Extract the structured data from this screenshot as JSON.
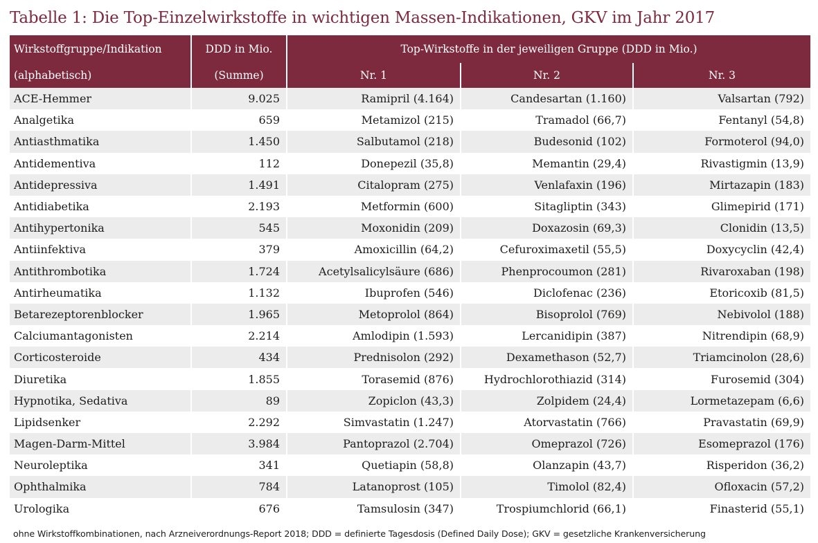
{
  "title": "Tabelle 1: Die Top-Einzelwirkstoffe in wichtigen Massen-Indikationen, GKV im Jahr 2017",
  "header": {
    "col1_line1": "Wirkstoffgruppe/Indikation",
    "col1_line2": "(alphabetisch)",
    "col2_line1": "DDD in Mio.",
    "col2_line2": "(Summe)",
    "group_label": "Top-Wirkstoffe in der jeweiligen Gruppe (DDD in Mio.)",
    "nr1": "Nr. 1",
    "nr2": "Nr. 2",
    "nr3": "Nr. 3"
  },
  "rows": [
    {
      "group": "ACE-Hemmer",
      "ddd": "9.025",
      "nr1": "Ramipril (4.164)",
      "nr2": "Candesartan (1.160)",
      "nr3": "Valsartan (792)"
    },
    {
      "group": "Analgetika",
      "ddd": "659",
      "nr1": "Metamizol (215)",
      "nr2": "Tramadol (66,7)",
      "nr3": "Fentanyl (54,8)"
    },
    {
      "group": "Antiasthmatika",
      "ddd": "1.450",
      "nr1": "Salbutamol (218)",
      "nr2": "Budesonid (102)",
      "nr3": "Formoterol (94,0)"
    },
    {
      "group": "Antidementiva",
      "ddd": "112",
      "nr1": "Donepezil (35,8)",
      "nr2": "Memantin (29,4)",
      "nr3": "Rivastigmin (13,9)"
    },
    {
      "group": "Antidepressiva",
      "ddd": "1.491",
      "nr1": "Citalopram (275)",
      "nr2": "Venlafaxin (196)",
      "nr3": "Mirtazapin (183)"
    },
    {
      "group": "Antidiabetika",
      "ddd": "2.193",
      "nr1": "Metformin (600)",
      "nr2": "Sitagliptin (343)",
      "nr3": "Glimepirid (171)"
    },
    {
      "group": "Antihypertonika",
      "ddd": "545",
      "nr1": "Moxonidin (209)",
      "nr2": "Doxazosin (69,3)",
      "nr3": "Clonidin (13,5)"
    },
    {
      "group": "Antiinfektiva",
      "ddd": "379",
      "nr1": "Amoxicillin (64,2)",
      "nr2": "Cefuroximaxetil (55,5)",
      "nr3": "Doxycyclin (42,4)"
    },
    {
      "group": "Antithrombotika",
      "ddd": "1.724",
      "nr1": "Acetylsalicylsäure (686)",
      "nr2": "Phenprocoumon (281)",
      "nr3": "Rivaroxaban (198)"
    },
    {
      "group": "Antirheumatika",
      "ddd": "1.132",
      "nr1": "Ibuprofen (546)",
      "nr2": "Diclofenac (236)",
      "nr3": "Etoricoxib (81,5)"
    },
    {
      "group": "Betarezeptorenblocker",
      "ddd": "1.965",
      "nr1": "Metoprolol (864)",
      "nr2": "Bisoprolol (769)",
      "nr3": "Nebivolol (188)"
    },
    {
      "group": "Calciumantagonisten",
      "ddd": "2.214",
      "nr1": "Amlodipin (1.593)",
      "nr2": "Lercanidipin (387)",
      "nr3": "Nitrendipin (68,9)"
    },
    {
      "group": "Corticosteroide",
      "ddd": "434",
      "nr1": "Prednisolon (292)",
      "nr2": "Dexamethason (52,7)",
      "nr3": "Triamcinolon (28,6)"
    },
    {
      "group": "Diuretika",
      "ddd": "1.855",
      "nr1": "Torasemid (876)",
      "nr2": "Hydrochlorothiazid (314)",
      "nr3": "Furosemid (304)"
    },
    {
      "group": "Hypnotika, Sedativa",
      "ddd": "89",
      "nr1": "Zopiclon (43,3)",
      "nr2": "Zolpidem (24,4)",
      "nr3": "Lormetazepam (6,6)"
    },
    {
      "group": "Lipidsenker",
      "ddd": "2.292",
      "nr1": "Simvastatin (1.247)",
      "nr2": "Atorvastatin (766)",
      "nr3": "Pravastatin (69,9)"
    },
    {
      "group": "Magen-Darm-Mittel",
      "ddd": "3.984",
      "nr1": "Pantoprazol (2.704)",
      "nr2": "Omeprazol (726)",
      "nr3": "Esomeprazol (176)"
    },
    {
      "group": "Neuroleptika",
      "ddd": "341",
      "nr1": "Quetiapin (58,8)",
      "nr2": "Olanzapin (43,7)",
      "nr3": "Risperidon (36,2)"
    },
    {
      "group": "Ophthalmika",
      "ddd": "784",
      "nr1": "Latanoprost (105)",
      "nr2": "Timolol (82,4)",
      "nr3": "Ofloxacin (57,2)"
    },
    {
      "group": "Urologika",
      "ddd": "676",
      "nr1": "Tamsulosin (347)",
      "nr2": "Trospiumchlorid (66,1)",
      "nr3": "Finasterid (55,1)"
    }
  ],
  "footnote": "ohne Wirkstoffkombinationen, nach Arzneiverordnungs-Report 2018; DDD = definierte Tagesdosis (Defined Daily Dose); GKV = gesetzliche Krankenversicherung",
  "colors": {
    "header_bg": "#7d2a3e",
    "stripe": "#ececec",
    "title": "#7d2a3e"
  }
}
